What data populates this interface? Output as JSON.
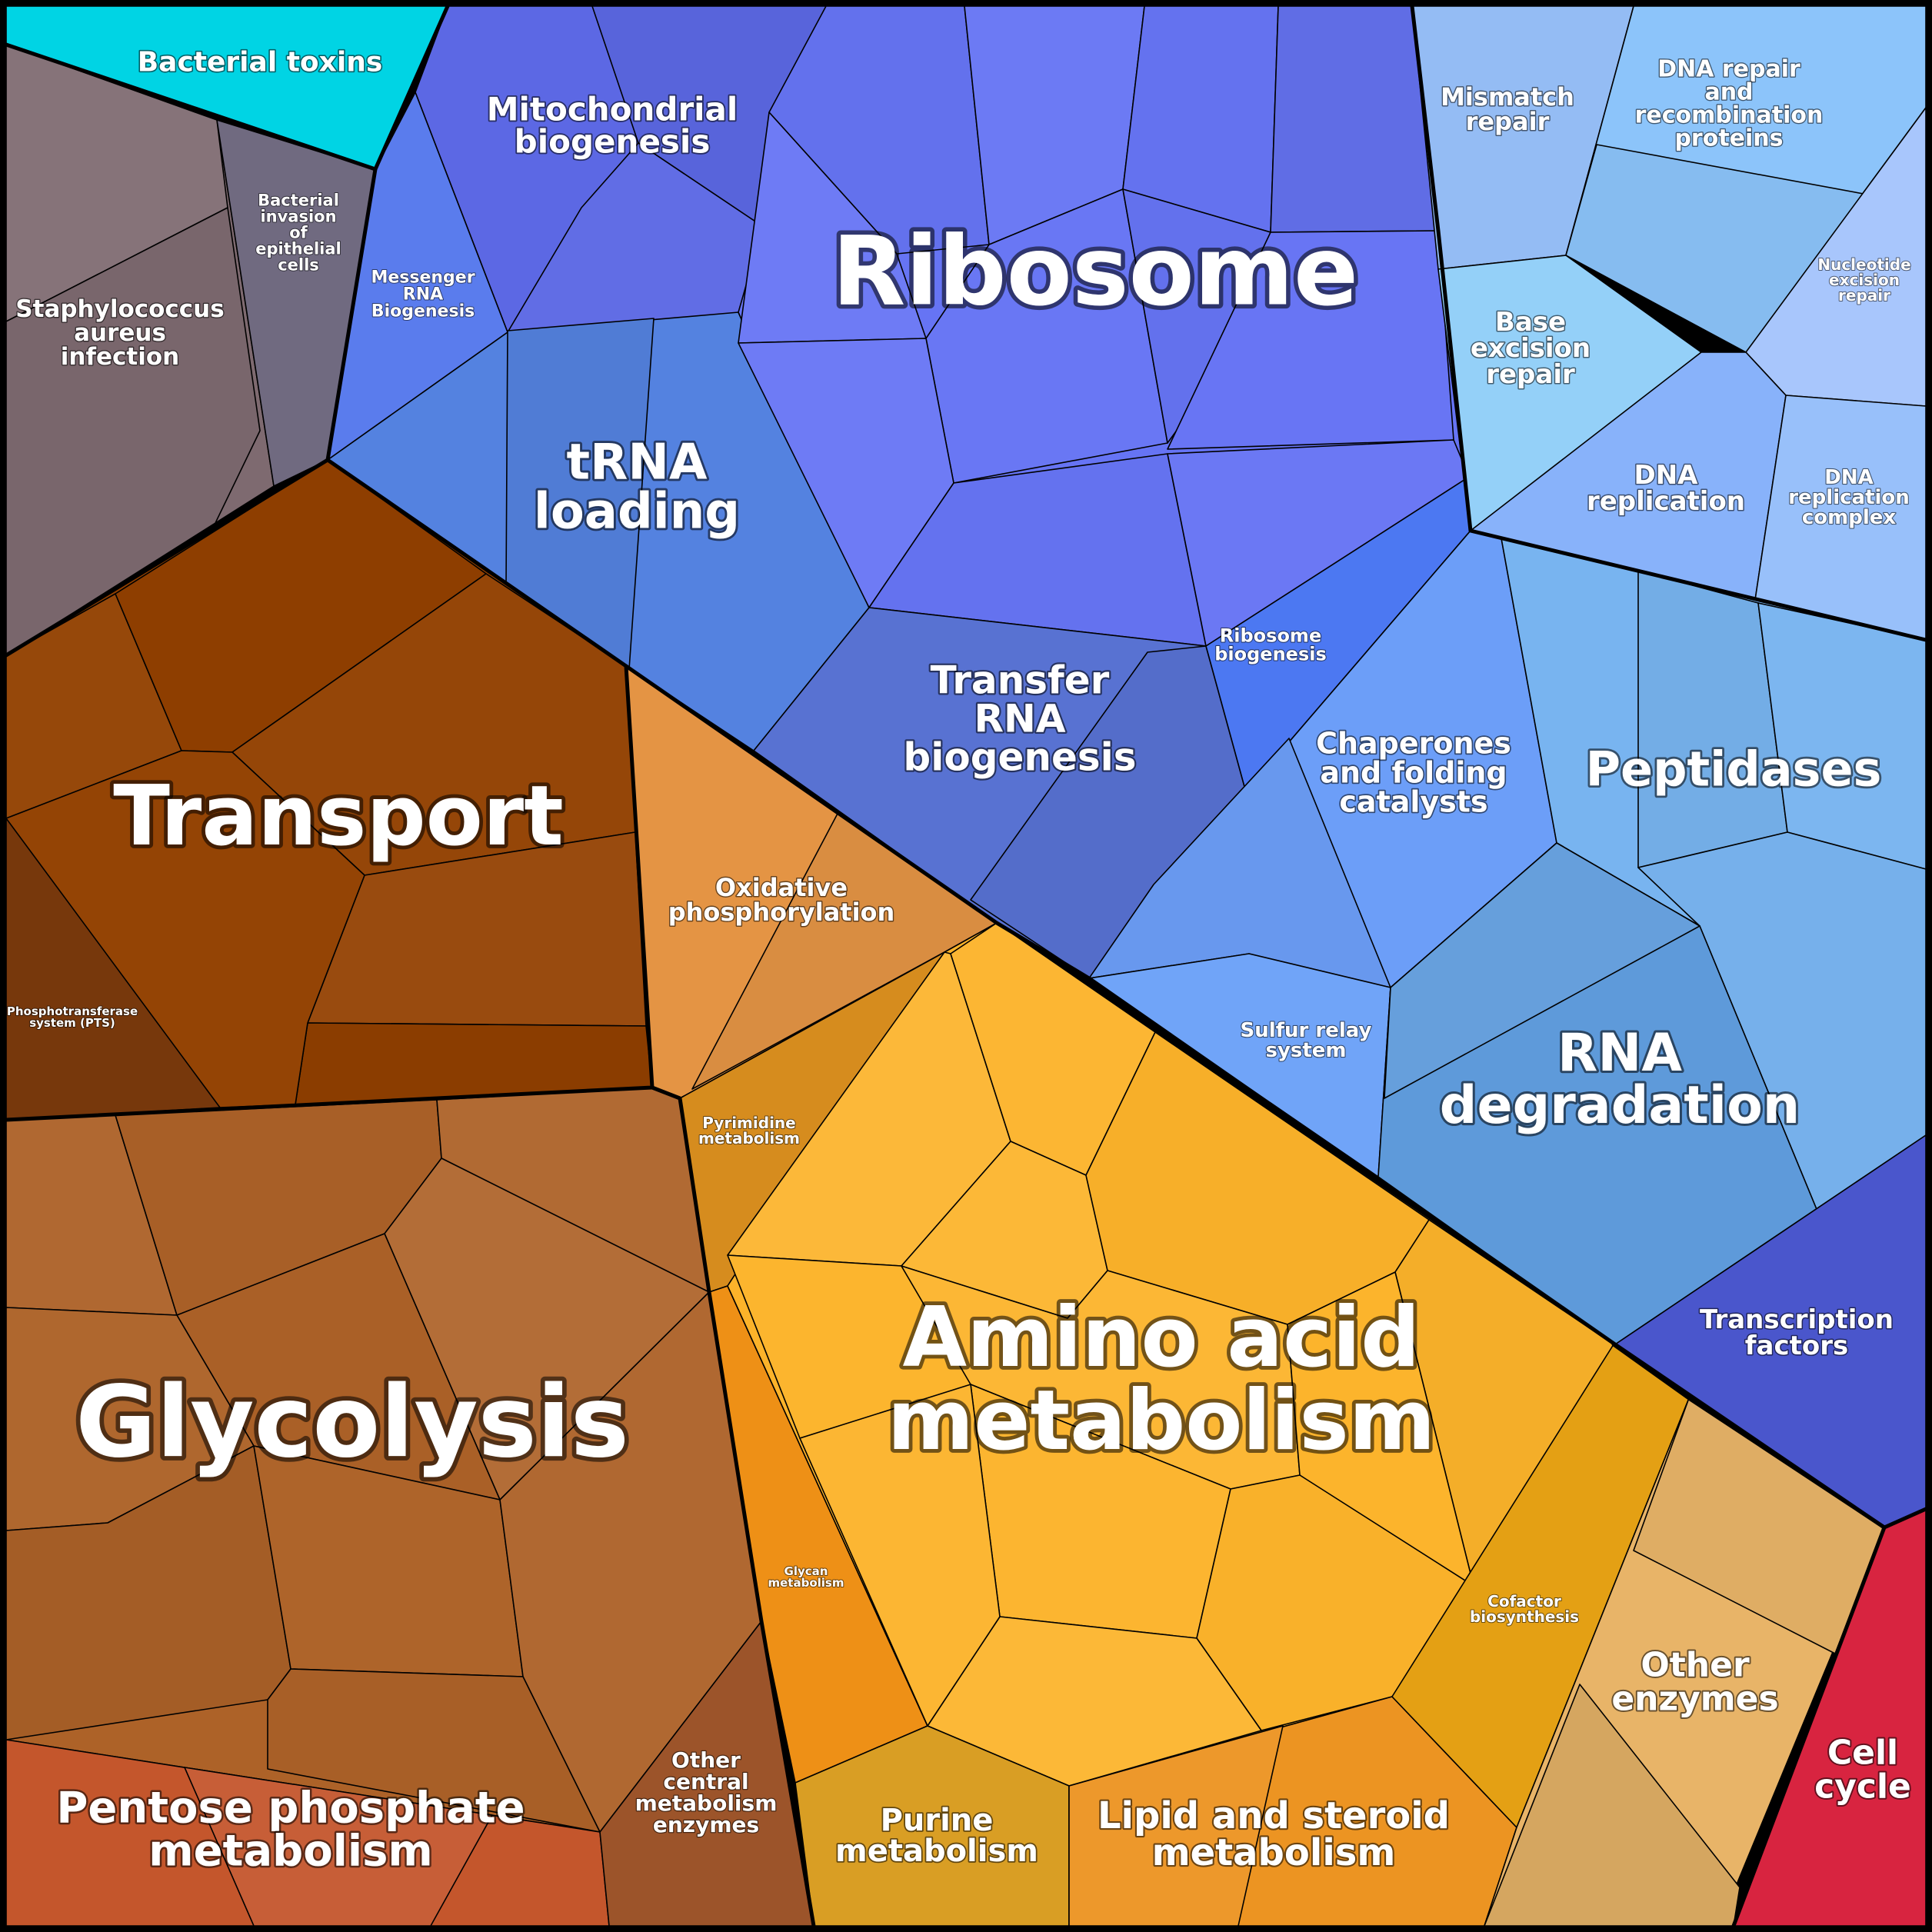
{
  "regions": {
    "bacterial_toxins": {
      "label": [
        "Bacterial toxins"
      ],
      "color": "#00d4e4"
    },
    "staphylococcus": {
      "label": [
        "Staphylococcus",
        "aureus",
        "infection"
      ],
      "color": "#7e6a70"
    },
    "bacterial_invasion": {
      "label": [
        "Bacterial",
        "invasion",
        "of",
        "epithelial",
        "cells"
      ],
      "color": "#706a80"
    },
    "transport": {
      "label": [
        "Transport"
      ],
      "color": "#924000"
    },
    "pts": {
      "label": [
        "Phosphotransferase",
        "system (PTS)"
      ],
      "color": "#77380c"
    },
    "glycolysis": {
      "label": [
        "Glycolysis"
      ],
      "color": "#ad6228"
    },
    "pentose": {
      "label": [
        "Pentose phosphate",
        "metabolism"
      ],
      "color": "#c4562c"
    },
    "other_central": {
      "label": [
        "Other",
        "central",
        "metabolism",
        "enzymes"
      ],
      "color": "#9c542a"
    },
    "oxphos": {
      "label": [
        "Oxidative",
        "phosphorylation"
      ],
      "color": "#e49444"
    },
    "pyrimidine": {
      "label": [
        "Pyrimidine",
        "metabolism"
      ],
      "color": "#d68c1e"
    },
    "glycan": {
      "label": [
        "Glycan",
        "metabolism"
      ],
      "color": "#ee9016"
    },
    "amino_acid": {
      "label": [
        "Amino acid",
        "metabolism"
      ],
      "color": "#fcb32a"
    },
    "purine": {
      "label": [
        "Purine",
        "metabolism"
      ],
      "color": "#d99e24"
    },
    "lipid": {
      "label": [
        "Lipid and steroid",
        "metabolism"
      ],
      "color": "#ec9422"
    },
    "cofactor": {
      "label": [
        "Cofactor",
        "biosynthesis"
      ],
      "color": "#e4a014"
    },
    "other_enzymes": {
      "label": [
        "Other",
        "enzymes"
      ],
      "color": "#e8b468"
    },
    "cell_cycle": {
      "label": [
        "Cell",
        "cycle"
      ],
      "color": "#d82440"
    },
    "mito": {
      "label": [
        "Mitochondrial",
        "biogenesis"
      ],
      "color": "#5c68e4"
    },
    "messenger_rna": {
      "label": [
        "Messenger",
        "RNA",
        "Biogenesis"
      ],
      "color": "#5a7ced"
    },
    "trna_loading": {
      "label": [
        "tRNA",
        "loading"
      ],
      "color": "#5482e0"
    },
    "ribosome": {
      "label": [
        "Ribosome"
      ],
      "color": "#6674f4"
    },
    "transfer_rna": {
      "label": [
        "Transfer",
        "RNA",
        "biogenesis"
      ],
      "color": "#5872d2"
    },
    "ribosome_biogenesis": {
      "label": [
        "Ribosome",
        "biogenesis"
      ],
      "color": "#4c78f2"
    },
    "mismatch": {
      "label": [
        "Mismatch",
        "repair"
      ],
      "color": "#94bcf4"
    },
    "dna_repair": {
      "label": [
        "DNA repair",
        "and",
        "recombination",
        "proteins"
      ],
      "color": "#8cc4fa"
    },
    "nucleotide_excision": {
      "label": [
        "Nucleotide",
        "excision",
        "repair"
      ],
      "color": "#a8c6fc"
    },
    "base_excision": {
      "label": [
        "Base",
        "excision",
        "repair"
      ],
      "color": "#94d0f8"
    },
    "dna_replication": {
      "label": [
        "DNA",
        "replication"
      ],
      "color": "#88b2fa"
    },
    "dna_replication_complex": {
      "label": [
        "DNA",
        "replication",
        "complex"
      ],
      "color": "#98c0fa"
    },
    "chaperones": {
      "label": [
        "Chaperones",
        "and folding",
        "catalysts"
      ],
      "color": "#6c9ef8"
    },
    "peptidases": {
      "label": [
        "Peptidases"
      ],
      "color": "#78b4f0"
    },
    "sulfur_relay": {
      "label": [
        "Sulfur relay",
        "system"
      ],
      "color": "#70a4f8"
    },
    "rna_degradation": {
      "label": [
        "RNA",
        "degradation"
      ],
      "color": "#5e9ada"
    },
    "transcription": {
      "label": [
        "Transcription",
        "factors"
      ],
      "color": "#4a56cc"
    }
  }
}
